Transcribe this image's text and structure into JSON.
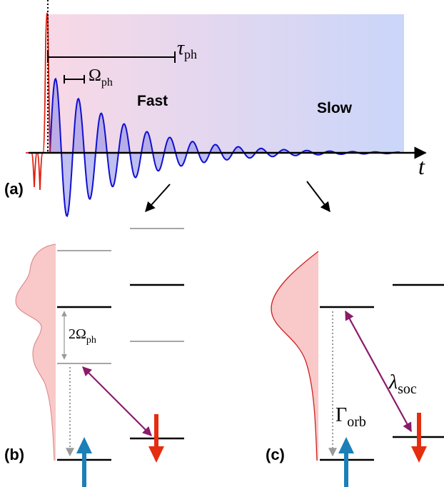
{
  "panel_a": {
    "label": "(a)",
    "tau_symbol": "τ",
    "tau_sub": "ph",
    "omega_symbol": "Ω",
    "omega_sub": "ph",
    "fast_label": "Fast",
    "slow_label": "Slow",
    "axis_label": "t"
  },
  "panel_b": {
    "label": "(b)",
    "two_omega_symbol": "2Ω",
    "two_omega_sub": "ph"
  },
  "panel_c": {
    "label": "(c)",
    "gamma_symbol": "Γ",
    "gamma_sub": "orb",
    "lambda_symbol": "λ",
    "lambda_sub": "soc"
  },
  "colors": {
    "oscillation": "#1010d0",
    "oscillation_fill": "#8a8ae6",
    "pump": "#e02010",
    "spin_down_arrow": "#e52d10",
    "spin_up_arrow": "#1b7fb8",
    "coupling_arrow": "#8b1a6b",
    "distribution_fill": "#f9c8c8",
    "distribution_line": "#d02020",
    "gradient_start": "#f8dce8",
    "gradient_end": "#cfd8f8"
  }
}
